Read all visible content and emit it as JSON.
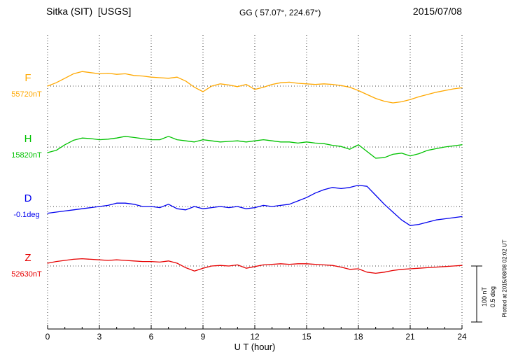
{
  "header": {
    "station": "Sitka (SIT)  [USGS]",
    "coords": "GG ( 57.07°, 224.67°)",
    "date": "2015/07/08"
  },
  "axis": {
    "xlabel": "U T (hour)",
    "ticks": [
      0,
      3,
      6,
      9,
      12,
      15,
      18,
      21,
      24
    ]
  },
  "scalebar": {
    "nt_label": "100 nT",
    "deg_label": "0.5 deg"
  },
  "footer_note": "Plotted at 2015/08/08 02:02 UT",
  "chart_data": {
    "type": "line",
    "title": "Sitka (SIT) [USGS] magnetogram 2015/07/08",
    "xlabel": "U T (hour)",
    "x_range": [
      0,
      24
    ],
    "x_step_hours": 0.5,
    "grid": "dotted vertical lines every 3 hours; dotted horizontal baseline per trace",
    "values_note": "values are offsets from each trace baseline, in the series unit",
    "scale": {
      "nT_per_bar": 100,
      "deg_per_bar": 0.5
    },
    "series": [
      {
        "name": "F",
        "color": "#FFA800",
        "unit": "nT",
        "baseline_label": "55720nT",
        "baseline_value": 55720,
        "values": [
          0,
          6,
          14,
          22,
          26,
          24,
          22,
          23,
          21,
          22,
          19,
          18,
          16,
          15,
          14,
          16,
          9,
          -2,
          -10,
          0,
          4,
          2,
          -1,
          3,
          -6,
          -2,
          3,
          6,
          7,
          5,
          4,
          3,
          4,
          3,
          1,
          -2,
          -8,
          -15,
          -22,
          -27,
          -30,
          -28,
          -24,
          -19,
          -15,
          -11,
          -8,
          -5,
          -3
        ]
      },
      {
        "name": "H",
        "color": "#00C200",
        "unit": "nT",
        "baseline_label": "15820nT",
        "baseline_value": 15820,
        "values": [
          -10,
          -6,
          4,
          12,
          16,
          15,
          13,
          14,
          16,
          19,
          17,
          15,
          13,
          13,
          19,
          13,
          11,
          9,
          13,
          11,
          9,
          10,
          11,
          9,
          11,
          13,
          11,
          9,
          9,
          7,
          9,
          7,
          6,
          3,
          1,
          -4,
          4,
          -8,
          -20,
          -19,
          -13,
          -11,
          -16,
          -12,
          -6,
          -3,
          0,
          2,
          4
        ]
      },
      {
        "name": "D",
        "color": "#0000EE",
        "unit": "deg",
        "baseline_label": "-0.1deg",
        "baseline_value": -0.1,
        "values": [
          -0.06,
          -0.05,
          -0.04,
          -0.03,
          -0.02,
          -0.01,
          0.0,
          0.01,
          0.03,
          0.03,
          0.02,
          0.0,
          0.0,
          -0.01,
          0.02,
          -0.02,
          -0.03,
          0.0,
          -0.02,
          -0.01,
          0.0,
          -0.01,
          0.0,
          -0.02,
          -0.01,
          0.01,
          0.0,
          0.01,
          0.02,
          0.05,
          0.08,
          0.12,
          0.15,
          0.17,
          0.16,
          0.17,
          0.19,
          0.18,
          0.1,
          0.02,
          -0.05,
          -0.12,
          -0.17,
          -0.16,
          -0.14,
          -0.12,
          -0.11,
          -0.1,
          -0.09
        ]
      },
      {
        "name": "Z",
        "color": "#E60000",
        "unit": "nT",
        "baseline_label": "52630nT",
        "baseline_value": 52630,
        "values": [
          5,
          8,
          10,
          12,
          13,
          12,
          11,
          10,
          11,
          10,
          9,
          8,
          8,
          7,
          9,
          5,
          -3,
          -9,
          -4,
          0,
          1,
          0,
          2,
          -4,
          -1,
          2,
          3,
          4,
          3,
          4,
          4,
          3,
          2,
          1,
          -2,
          -6,
          -5,
          -11,
          -13,
          -11,
          -8,
          -6,
          -5,
          -4,
          -3,
          -2,
          -1,
          0,
          1
        ]
      }
    ]
  }
}
